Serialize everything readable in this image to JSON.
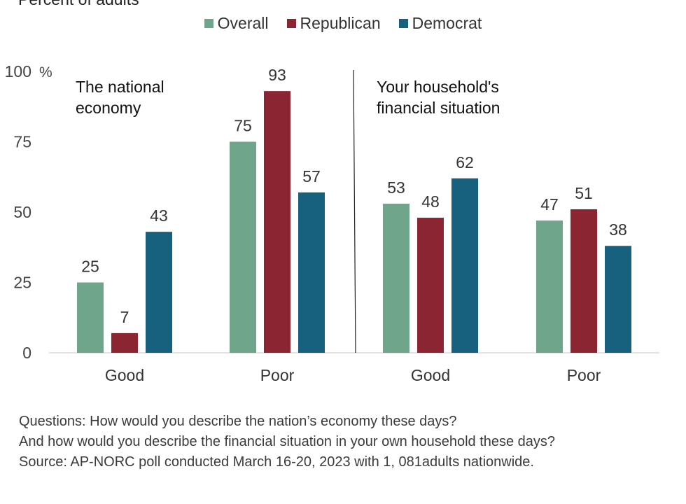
{
  "header": {
    "top_label": "Percent of adults"
  },
  "legend": [
    {
      "label": "Overall",
      "color": "#6fa58a"
    },
    {
      "label": "Republican",
      "color": "#8b2532"
    },
    {
      "label": "Democrat",
      "color": "#17607e"
    }
  ],
  "chart_data": {
    "type": "bar",
    "ylim": [
      0,
      100
    ],
    "yticks": [
      0,
      25,
      50,
      75,
      100
    ],
    "ytick_labels": [
      "0",
      "25",
      "50",
      "75",
      "100"
    ],
    "y_unit": "%",
    "grid": false,
    "legend_position": "top-center",
    "panels": [
      {
        "title_lines": [
          "The national",
          "economy"
        ],
        "categories": [
          "Good",
          "Poor"
        ]
      },
      {
        "title_lines": [
          "Your household's",
          "financial situation"
        ],
        "categories": [
          "Good",
          "Poor"
        ]
      }
    ],
    "categories": [
      "Good",
      "Poor",
      "Good",
      "Poor"
    ],
    "series": [
      {
        "name": "Overall",
        "color": "#6fa58a",
        "values": [
          25,
          75,
          53,
          47
        ]
      },
      {
        "name": "Republican",
        "color": "#8b2532",
        "values": [
          7,
          93,
          48,
          51
        ]
      },
      {
        "name": "Democrat",
        "color": "#17607e",
        "values": [
          43,
          57,
          62,
          38
        ]
      }
    ]
  },
  "footnote": {
    "lines": [
      "Questions: How would you describe the nation’s economy these days?",
      "And how would you describe the financial situation in your own household these days?",
      "Source: AP-NORC poll conducted March 16-20, 2023 with 1, 081adults nationwide."
    ]
  }
}
